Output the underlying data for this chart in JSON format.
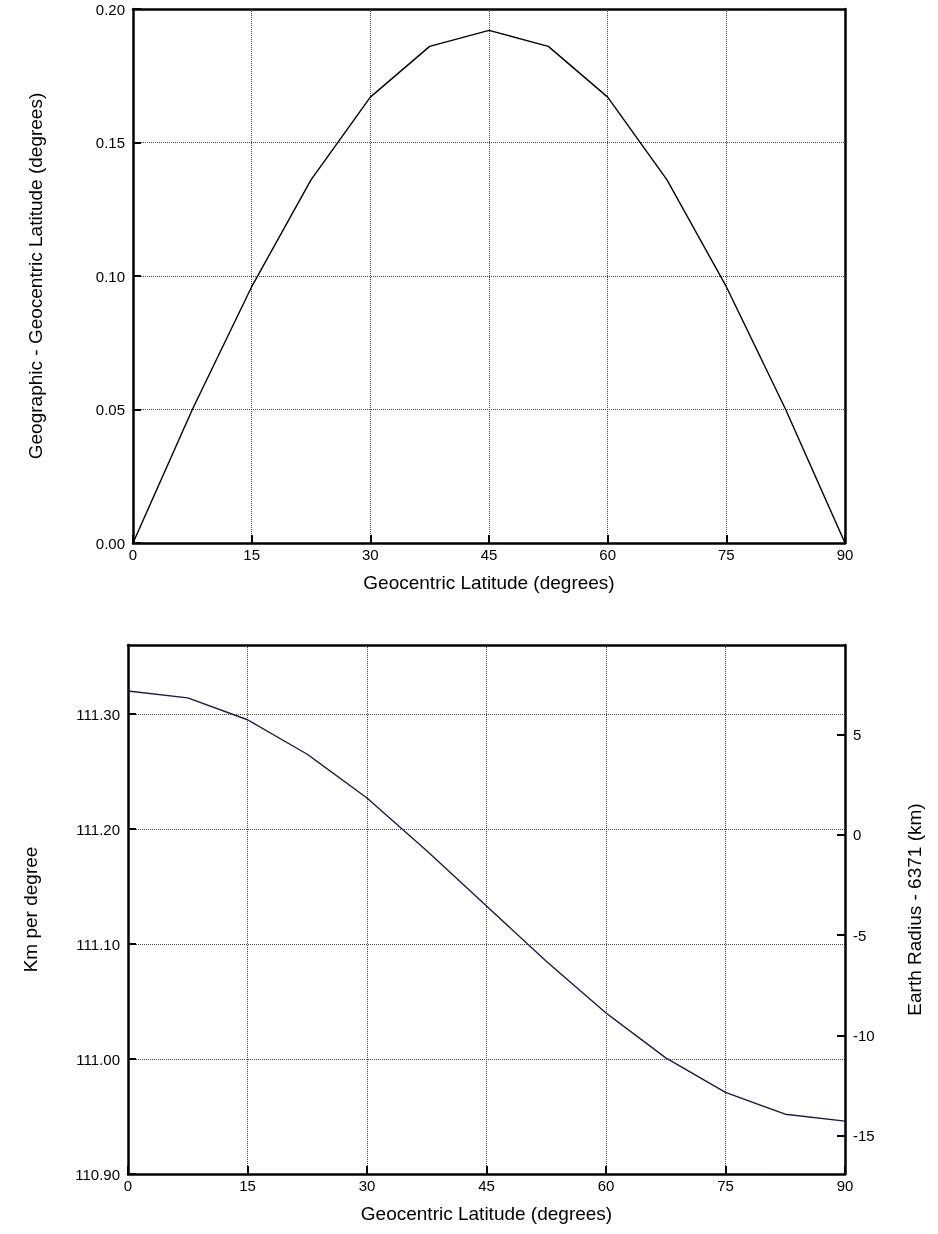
{
  "chart_data": [
    {
      "type": "line",
      "xlabel": "Geocentric Latitude (degrees)",
      "ylabel": "Geographic - Geocentric Latitude (degrees)",
      "x": [
        0,
        7.5,
        15,
        22.5,
        30,
        37.5,
        45,
        52.5,
        60,
        67.5,
        75,
        82.5,
        90
      ],
      "series": [
        {
          "color": "#000000",
          "values": [
            0,
            0.05,
            0.096,
            0.136,
            0.167,
            0.186,
            0.192,
            0.186,
            0.167,
            0.136,
            0.096,
            0.05,
            0
          ]
        }
      ],
      "xlim": [
        0,
        90
      ],
      "xticks": [
        0,
        15,
        30,
        45,
        60,
        75,
        90
      ],
      "ylim": [
        0,
        0.2
      ],
      "yticks": [
        {
          "value": 0,
          "label": "0.00"
        },
        {
          "value": 0.05,
          "label": "0.05"
        },
        {
          "value": 0.1,
          "label": "0.10"
        },
        {
          "value": 0.15,
          "label": "0.15"
        },
        {
          "value": 0.2,
          "label": "0.20"
        }
      ],
      "grid": true,
      "marker": "none"
    },
    {
      "type": "line",
      "xlabel": "Geocentric Latitude (degrees)",
      "ylabel": "Km per degree",
      "y2label": "Earth Radius - 6371 (km)",
      "x": [
        0,
        7.5,
        15,
        22.5,
        30,
        37.5,
        45,
        52.5,
        60,
        67.5,
        75,
        82.5,
        90
      ],
      "series": [
        {
          "color": "#1a1a40",
          "values": [
            111.32,
            111.314,
            111.295,
            111.265,
            111.227,
            111.181,
            111.133,
            111.085,
            111.04,
            111.001,
            110.971,
            110.952,
            110.946
          ]
        }
      ],
      "xlim": [
        0,
        90
      ],
      "xticks": [
        0,
        15,
        30,
        45,
        60,
        75,
        90
      ],
      "ylim": [
        110.9,
        111.36
      ],
      "yticks": [
        {
          "value": 110.9,
          "label": "110.90"
        },
        {
          "value": 111,
          "label": "111.00"
        },
        {
          "value": 111.1,
          "label": "111.10"
        },
        {
          "value": 111.2,
          "label": "111.20"
        },
        {
          "value": 111.3,
          "label": "111.30"
        }
      ],
      "y2lim": [
        -16.9,
        9.46
      ],
      "y2ticks": [
        -15,
        -10,
        -5,
        0,
        5
      ],
      "grid": true,
      "marker": "none"
    }
  ]
}
